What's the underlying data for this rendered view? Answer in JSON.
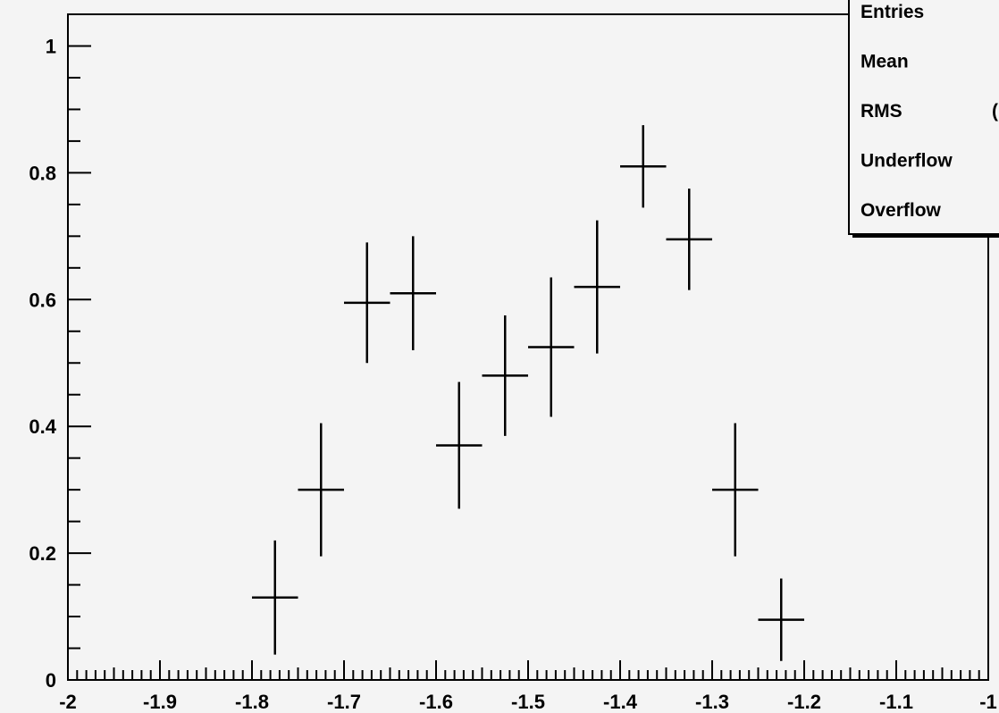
{
  "chart_data": {
    "type": "scatter",
    "title": "",
    "xlabel": "",
    "ylabel": "",
    "xlim": [
      -2,
      -1.0
    ],
    "ylim": [
      0,
      1.05
    ],
    "grid": false,
    "x_tick_labels": [
      "-2",
      "-1.9",
      "-1.8",
      "-1.7",
      "-1.6",
      "-1.5",
      "-1.4",
      "-1.3",
      "-1.2",
      "-1.1",
      "-1"
    ],
    "x_tick_values": [
      -2,
      -1.9,
      -1.8,
      -1.7,
      -1.6,
      -1.5,
      -1.4,
      -1.3,
      -1.2,
      -1.1,
      -1.0
    ],
    "y_tick_labels": [
      "0",
      "0.2",
      "0.4",
      "0.6",
      "0.8",
      "1"
    ],
    "y_tick_values": [
      0,
      0.2,
      0.4,
      0.6,
      0.8,
      1.0
    ],
    "bin_width": 0.05,
    "points": [
      {
        "x": -1.775,
        "y": 0.13,
        "yerr": 0.09
      },
      {
        "x": -1.725,
        "y": 0.3,
        "yerr": 0.105
      },
      {
        "x": -1.675,
        "y": 0.595,
        "yerr": 0.095
      },
      {
        "x": -1.625,
        "y": 0.61,
        "yerr": 0.09
      },
      {
        "x": -1.575,
        "y": 0.37,
        "yerr": 0.1
      },
      {
        "x": -1.525,
        "y": 0.48,
        "yerr": 0.095
      },
      {
        "x": -1.475,
        "y": 0.525,
        "yerr": 0.11
      },
      {
        "x": -1.425,
        "y": 0.62,
        "yerr": 0.105
      },
      {
        "x": -1.375,
        "y": 0.81,
        "yerr": 0.065
      },
      {
        "x": -1.325,
        "y": 0.695,
        "yerr": 0.08
      },
      {
        "x": -1.275,
        "y": 0.3,
        "yerr": 0.105
      },
      {
        "x": -1.225,
        "y": 0.095,
        "yerr": 0.065
      }
    ],
    "stats_box": {
      "labels": [
        "Entries",
        "Mean",
        "RMS",
        "Underflow",
        "Overflow"
      ],
      "rms_value_fragment": "("
    }
  }
}
